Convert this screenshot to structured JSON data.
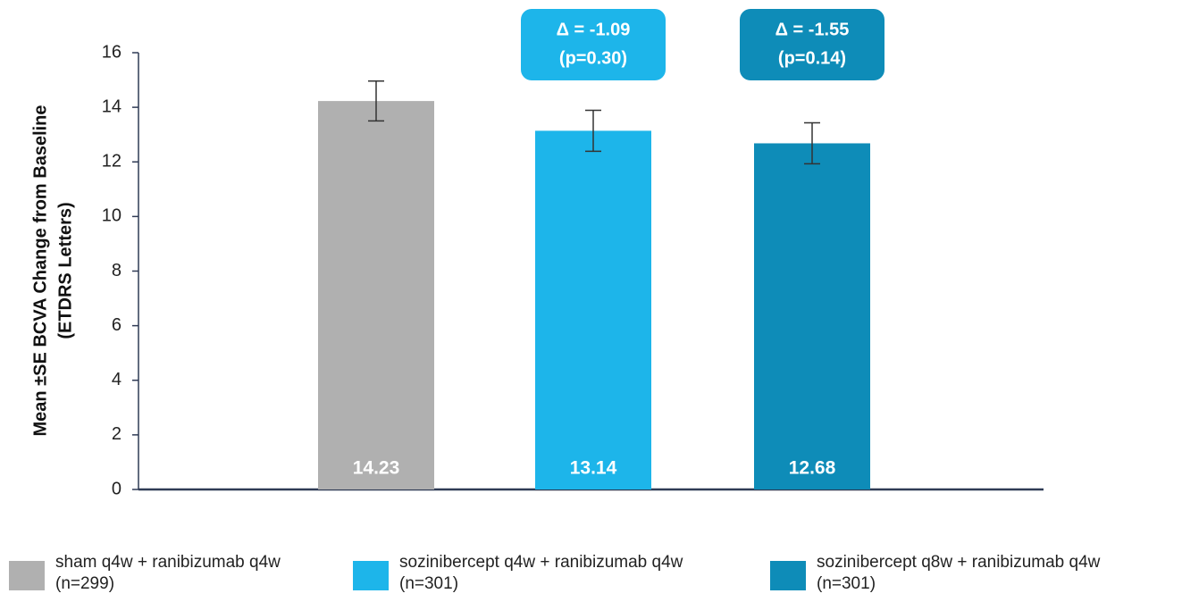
{
  "chart_data": {
    "type": "bar",
    "y_label": [
      "Mean ±SE BCVA Change from Baseline",
      "(ETDRS Letters)"
    ],
    "categories": [
      "sham q4w + ranibizumab q4w\n(n=299)",
      "sozinibercept q4w + ranibizumab q4w\n(n=301)",
      "sozinibercept q8w + ranibizumab q4w\n(n=301)"
    ],
    "values": [
      14.23,
      13.14,
      12.68
    ],
    "errors": [
      0.73,
      0.75,
      0.75
    ],
    "colors": [
      "#b0b0b0",
      "#1db5ea",
      "#0e8cb8"
    ],
    "annotations": [
      null,
      {
        "lines": [
          "Δ = -1.09",
          "(p=0.30)"
        ],
        "color": "#1db5ea"
      },
      {
        "lines": [
          "Δ = -1.55",
          "(p=0.14)"
        ],
        "color": "#0e8cb8"
      }
    ],
    "ylim": [
      0,
      16
    ],
    "yticks": [
      0,
      2,
      4,
      6,
      8,
      10,
      12,
      14,
      16
    ],
    "legend": "bottom"
  }
}
